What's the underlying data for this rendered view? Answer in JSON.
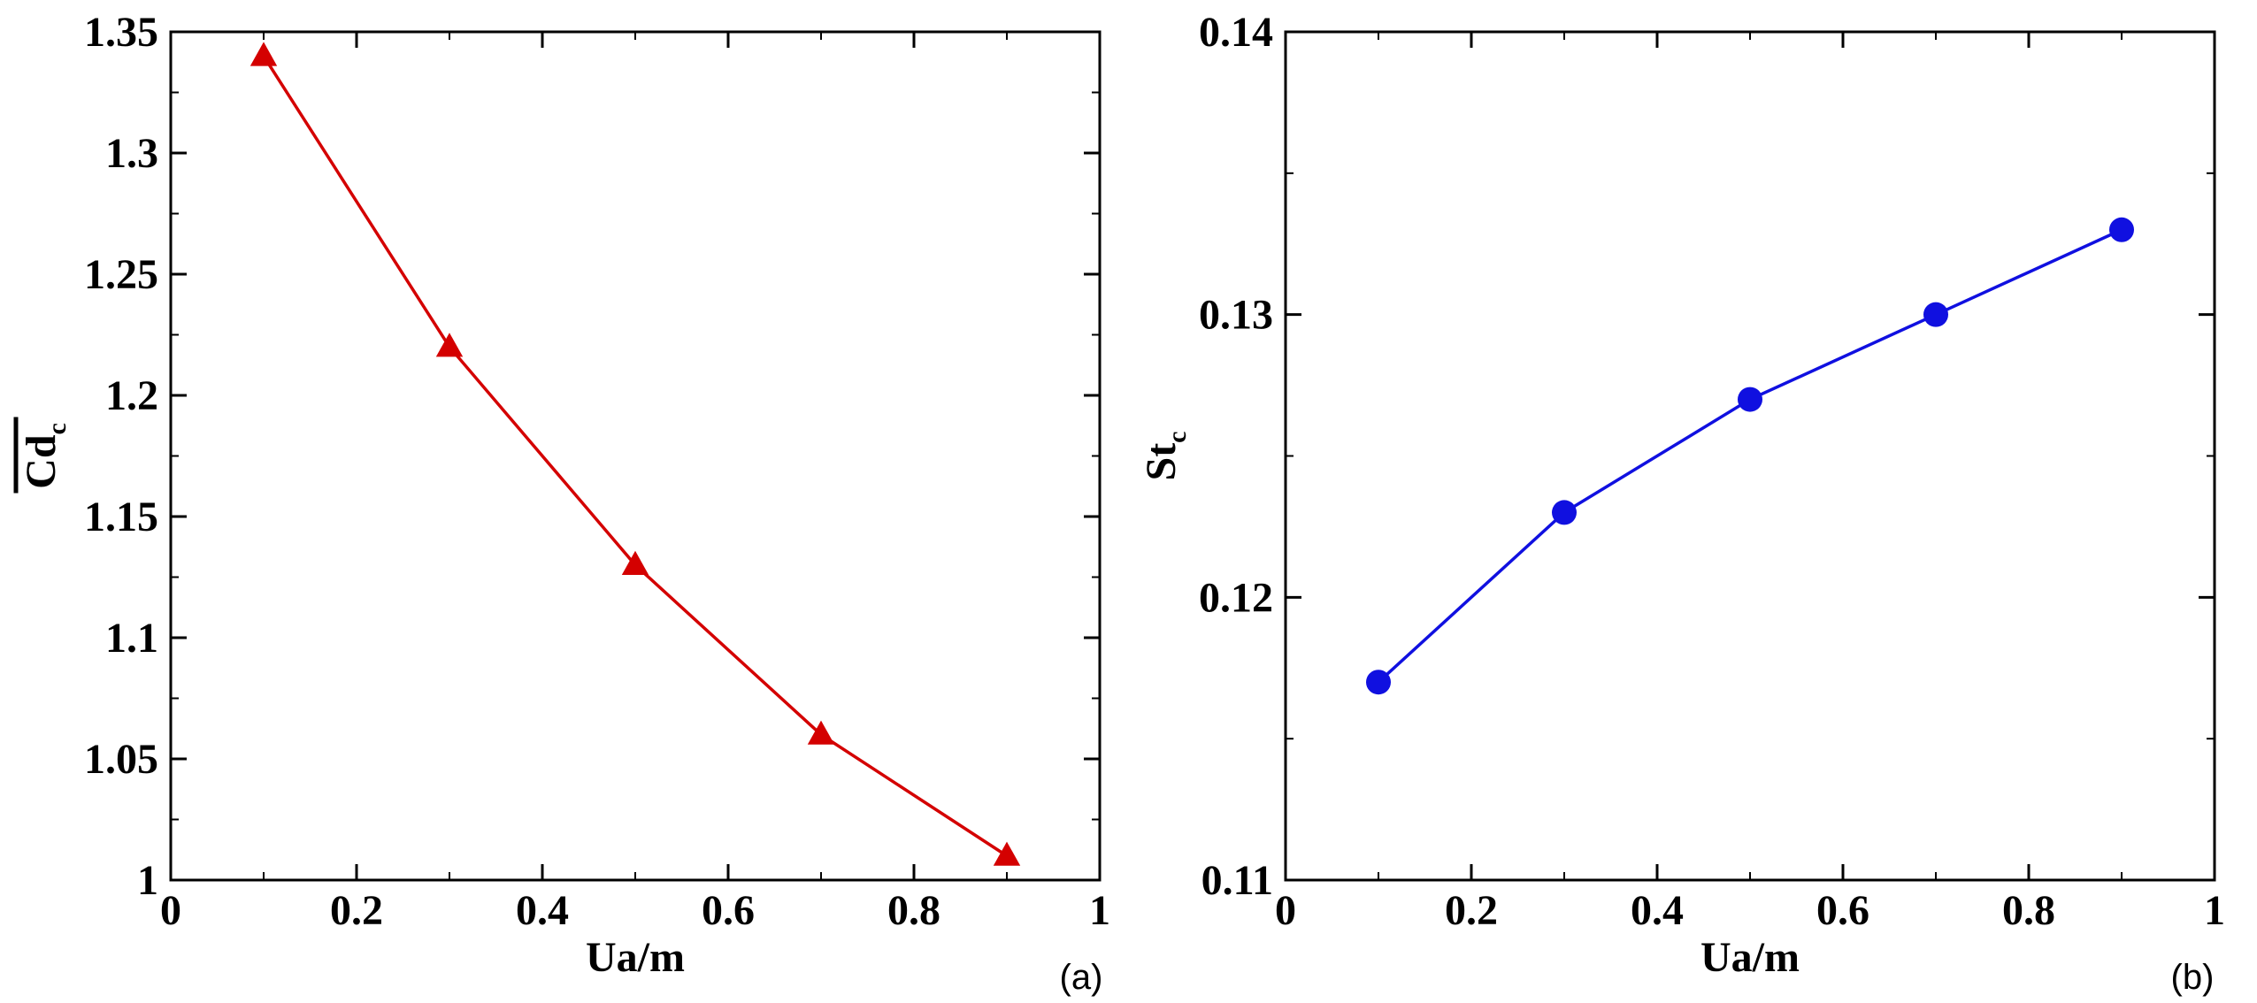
{
  "chart_data": [
    {
      "type": "line",
      "panel_label": "(a)",
      "xlabel": "Ua/m",
      "ylabel_main": "Cd",
      "ylabel_sub": "c",
      "ylabel_overline": true,
      "xlim": [
        0,
        1
      ],
      "ylim": [
        1,
        1.35
      ],
      "xticks": [
        "0",
        "0.2",
        "0.4",
        "0.6",
        "0.8",
        "1"
      ],
      "yticks": [
        "1",
        "1.05",
        "1.1",
        "1.15",
        "1.2",
        "1.25",
        "1.3",
        "1.35"
      ],
      "grid": false,
      "series": [
        {
          "marker": "triangle",
          "color": "#d40000",
          "x": [
            0.1,
            0.3,
            0.5,
            0.7,
            0.9
          ],
          "y": [
            1.34,
            1.22,
            1.13,
            1.06,
            1.01
          ]
        }
      ]
    },
    {
      "type": "line",
      "panel_label": "(b)",
      "xlabel": "Ua/m",
      "ylabel_main": "St",
      "ylabel_sub": "c",
      "ylabel_overline": false,
      "xlim": [
        0,
        1
      ],
      "ylim": [
        0.11,
        0.14
      ],
      "xticks": [
        "0",
        "0.2",
        "0.4",
        "0.6",
        "0.8",
        "1"
      ],
      "yticks": [
        "0.11",
        "0.12",
        "0.13",
        "0.14"
      ],
      "grid": false,
      "series": [
        {
          "marker": "circle",
          "color": "#1010e0",
          "x": [
            0.1,
            0.3,
            0.5,
            0.7,
            0.9
          ],
          "y": [
            0.117,
            0.123,
            0.127,
            0.13,
            0.133
          ]
        }
      ]
    }
  ]
}
